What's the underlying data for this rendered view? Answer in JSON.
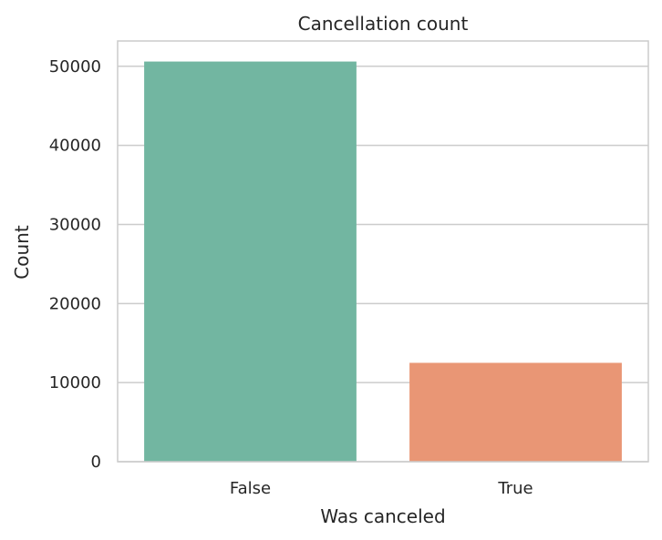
{
  "chart_data": {
    "type": "bar",
    "title": "Cancellation count",
    "xlabel": "Was canceled",
    "ylabel": "Count",
    "categories": [
      "False",
      "True"
    ],
    "values": [
      50600,
      12500
    ],
    "ylim": [
      0,
      53200
    ],
    "yticks": [
      0,
      10000,
      20000,
      30000,
      40000,
      50000
    ],
    "grid": true,
    "colors": [
      "#72b6a1",
      "#e99675"
    ],
    "grid_color": "#cccccc",
    "frame_color": "#cccccc"
  }
}
